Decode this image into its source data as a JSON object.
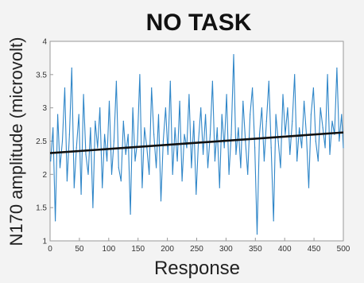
{
  "chart_data": {
    "type": "line",
    "title": "NO TASK",
    "xlabel": "Response",
    "ylabel": "N170 amplitude (microvolt)",
    "xlim": [
      0,
      500
    ],
    "ylim": [
      1,
      4
    ],
    "xticks": [
      0,
      50,
      100,
      150,
      200,
      250,
      300,
      350,
      400,
      450,
      500
    ],
    "yticks": [
      1,
      1.5,
      2,
      2.5,
      3,
      3.5,
      4
    ],
    "grid": false,
    "colors": {
      "series": "#2f86c8",
      "trend": "#111111",
      "axes": "#9a9a9a",
      "background": "#ffffff"
    },
    "series": [
      {
        "x": [
          1,
          5,
          9,
          13,
          17,
          21,
          25,
          29,
          33,
          37,
          41,
          45,
          49,
          53,
          57,
          61,
          65,
          69,
          73,
          77,
          81,
          85,
          89,
          93,
          97,
          101,
          105,
          109,
          113,
          117,
          121,
          125,
          129,
          133,
          137,
          141,
          145,
          149,
          153,
          157,
          161,
          165,
          169,
          173,
          177,
          181,
          185,
          189,
          193,
          197,
          201,
          205,
          209,
          213,
          217,
          221,
          225,
          229,
          233,
          237,
          241,
          245,
          249,
          253,
          257,
          261,
          265,
          269,
          273,
          277,
          281,
          285,
          289,
          293,
          297,
          301,
          305,
          309,
          313,
          317,
          321,
          325,
          329,
          333,
          337,
          341,
          345,
          349,
          353,
          357,
          361,
          365,
          369,
          373,
          377,
          381,
          385,
          389,
          393,
          397,
          401,
          405,
          409,
          413,
          417,
          421,
          425,
          429,
          433,
          437,
          441,
          445,
          449,
          453,
          457,
          461,
          465,
          469,
          473,
          477,
          481,
          485,
          489,
          493,
          497,
          500
        ],
        "values": [
          2.2,
          2.7,
          1.3,
          2.9,
          2.1,
          2.5,
          3.3,
          1.9,
          2.6,
          3.6,
          1.8,
          2.4,
          2.9,
          1.7,
          3.2,
          2.3,
          2.0,
          2.7,
          1.5,
          2.8,
          2.4,
          3.0,
          1.8,
          2.6,
          2.2,
          3.1,
          2.0,
          2.5,
          3.4,
          2.1,
          1.9,
          2.8,
          2.3,
          2.6,
          1.4,
          3.0,
          2.2,
          2.5,
          3.5,
          1.8,
          2.7,
          2.4,
          2.0,
          3.3,
          2.6,
          2.1,
          2.9,
          1.6,
          2.5,
          3.0,
          2.3,
          3.4,
          2.0,
          2.7,
          2.2,
          3.1,
          1.9,
          2.6,
          2.4,
          3.2,
          2.1,
          2.8,
          1.7,
          2.5,
          3.0,
          2.3,
          2.9,
          2.1,
          2.6,
          3.4,
          2.2,
          2.7,
          1.8,
          2.9,
          2.4,
          3.2,
          2.0,
          2.6,
          3.8,
          2.3,
          2.7,
          2.1,
          3.1,
          2.5,
          2.0,
          2.9,
          3.3,
          2.4,
          1.1,
          2.6,
          3.0,
          2.2,
          2.8,
          3.4,
          2.4,
          1.3,
          2.9,
          2.5,
          2.1,
          3.2,
          2.6,
          3.0,
          2.3,
          2.8,
          3.5,
          2.2,
          2.7,
          2.4,
          3.1,
          2.6,
          1.8,
          2.9,
          3.3,
          2.5,
          2.2,
          3.0,
          2.7,
          2.4,
          3.5,
          2.3,
          2.8,
          2.6,
          3.6,
          2.5,
          2.9,
          2.4
        ]
      },
      {
        "x": [
          0,
          500
        ],
        "values": [
          2.32,
          2.63
        ]
      }
    ]
  }
}
